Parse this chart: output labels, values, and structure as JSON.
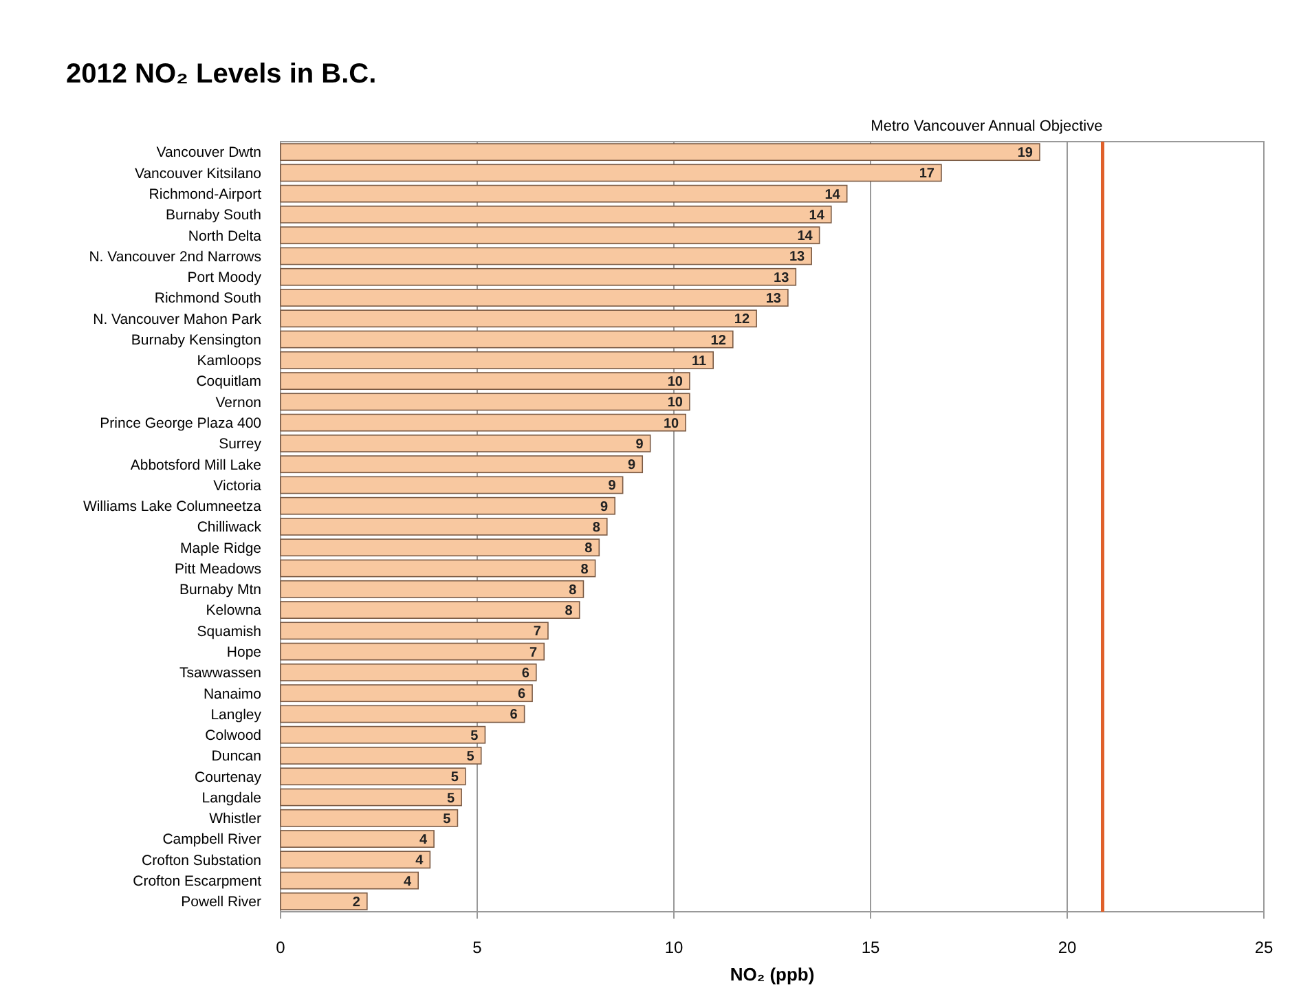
{
  "chart_data": {
    "type": "bar",
    "orientation": "horizontal",
    "title": "2012 NO₂ Levels in B.C.",
    "xlabel": "NO₂ (ppb)",
    "categories": [
      "Vancouver Dwtn",
      "Vancouver Kitsilano",
      "Richmond-Airport",
      "Burnaby South",
      "North Delta",
      "N. Vancouver 2nd Narrows",
      "Port Moody",
      "Richmond South",
      "N. Vancouver Mahon Park",
      "Burnaby Kensington",
      "Kamloops",
      "Coquitlam",
      "Vernon",
      "Prince George Plaza 400",
      "Surrey",
      "Abbotsford Mill Lake",
      "Victoria",
      "Williams Lake Columneetza",
      "Chilliwack",
      "Maple Ridge",
      "Pitt Meadows",
      "Burnaby Mtn",
      "Kelowna",
      "Squamish",
      "Hope",
      "Tsawwassen",
      "Nanaimo",
      "Langley",
      "Colwood",
      "Duncan",
      "Courtenay",
      "Langdale",
      "Whistler",
      "Campbell River",
      "Crofton Substation",
      "Crofton Escarpment",
      "Powell River"
    ],
    "values": [
      19.3,
      16.8,
      14.4,
      14.0,
      13.7,
      13.5,
      13.1,
      12.9,
      12.1,
      11.5,
      11.0,
      10.4,
      10.4,
      10.3,
      9.4,
      9.2,
      8.7,
      8.5,
      8.3,
      8.1,
      8.0,
      7.7,
      7.6,
      6.8,
      6.7,
      6.5,
      6.4,
      6.2,
      5.2,
      5.1,
      4.7,
      4.6,
      4.5,
      3.9,
      3.8,
      3.5,
      2.2
    ],
    "value_labels": [
      "19",
      "17",
      "14",
      "14",
      "14",
      "13",
      "13",
      "13",
      "12",
      "12",
      "11",
      "10",
      "10",
      "10",
      "9",
      "9",
      "9",
      "9",
      "8",
      "8",
      "8",
      "8",
      "8",
      "7",
      "7",
      "6",
      "6",
      "6",
      "5",
      "5",
      "5",
      "5",
      "5",
      "4",
      "4",
      "4",
      "2"
    ],
    "color": "#f8c8a0",
    "xlim": [
      0,
      25
    ],
    "xticks": [
      0,
      5,
      10,
      15,
      20,
      25
    ],
    "grid": "x",
    "ref_lines": [
      {
        "axis": "x",
        "value": 20.9,
        "label": "Metro Vancouver Annual Objective",
        "color": "#e0602a"
      }
    ]
  }
}
